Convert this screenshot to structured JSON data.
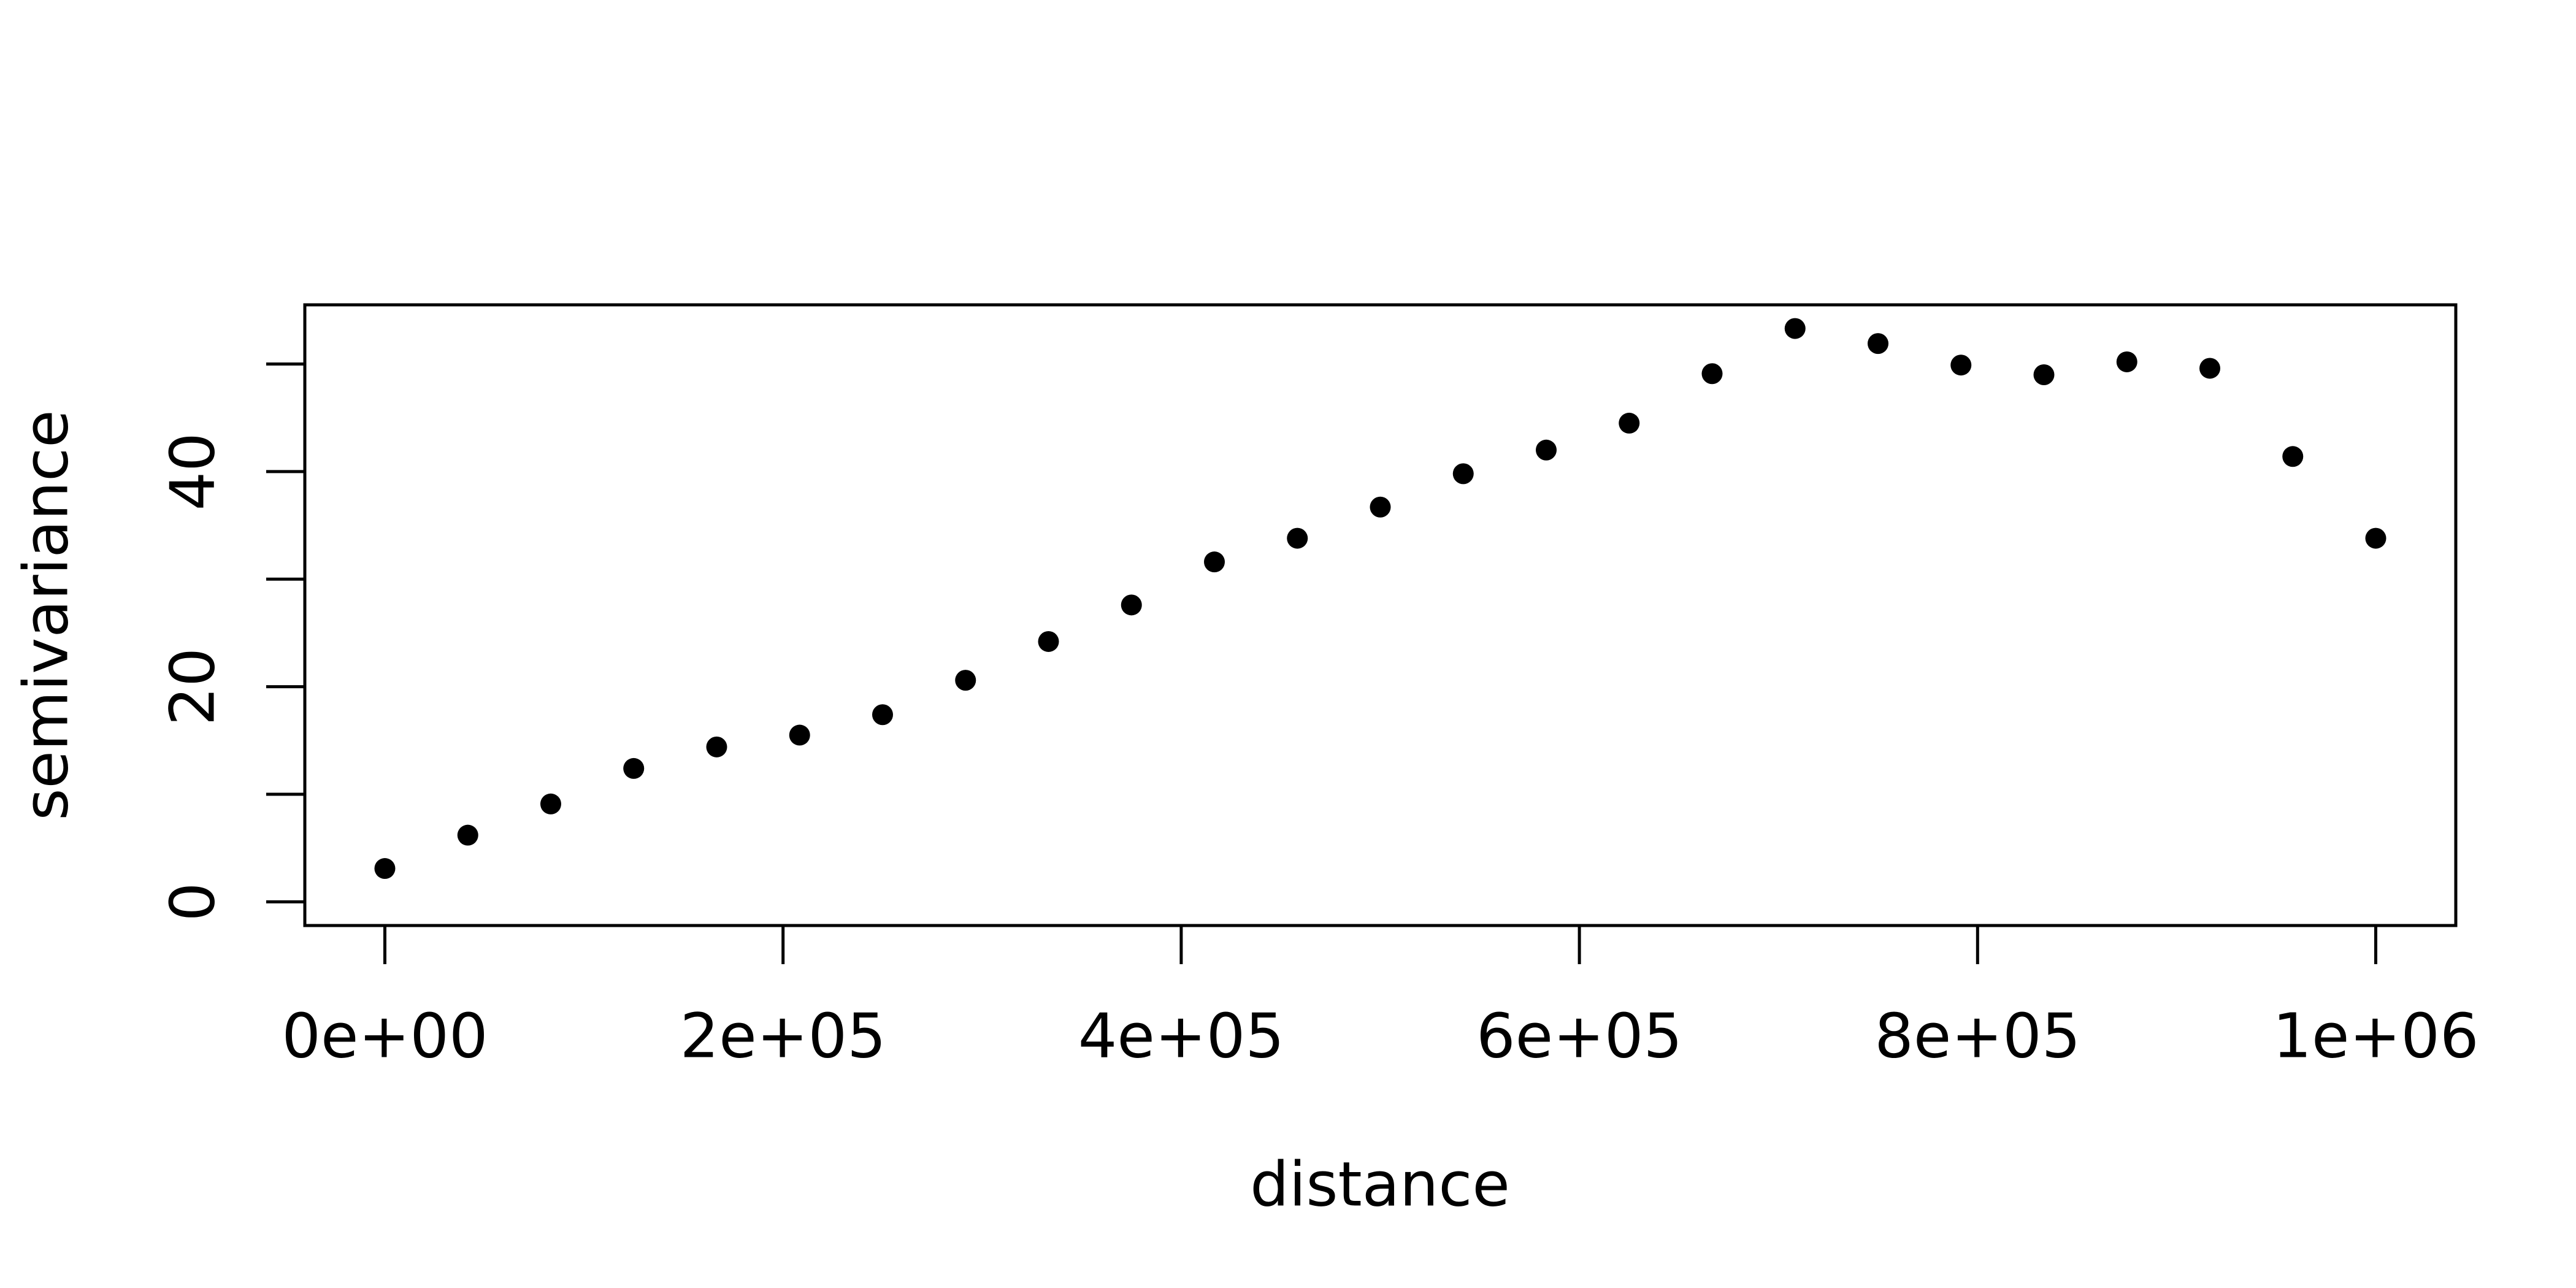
{
  "chart_data": {
    "type": "scatter",
    "x_label": "distance",
    "y_label": "semivariance",
    "x": [
      0,
      41667,
      83333,
      125000,
      166667,
      208333,
      250000,
      291667,
      333333,
      375000,
      416667,
      458333,
      500000,
      541667,
      583333,
      625000,
      666667,
      708333,
      750000,
      791667,
      833333,
      875000,
      916667,
      958333,
      1000000
    ],
    "series": [
      {
        "color": "#000000",
        "values": [
          3.1,
          6.2,
          9.1,
          12.4,
          14.4,
          15.5,
          17.4,
          20.6,
          24.2,
          27.6,
          31.6,
          33.8,
          36.7,
          39.8,
          42.0,
          44.5,
          49.1,
          53.3,
          51.9,
          49.9,
          49.0,
          50.2,
          49.6,
          41.4,
          33.8
        ]
      }
    ],
    "xlim": [
      -40200,
      1040200
    ],
    "ylim": [
      -2.2,
      55.5
    ],
    "xticks": [
      {
        "value": 0,
        "label": "0e+00"
      },
      {
        "value": 200000,
        "label": "2e+05"
      },
      {
        "value": 400000,
        "label": "4e+05"
      },
      {
        "value": 600000,
        "label": "6e+05"
      },
      {
        "value": 800000,
        "label": "8e+05"
      },
      {
        "value": 1000000,
        "label": "1e+06"
      }
    ],
    "yticks": [
      0,
      20,
      40
    ],
    "yticks_unlabeled": [
      10,
      30,
      50
    ],
    "grid": false
  }
}
